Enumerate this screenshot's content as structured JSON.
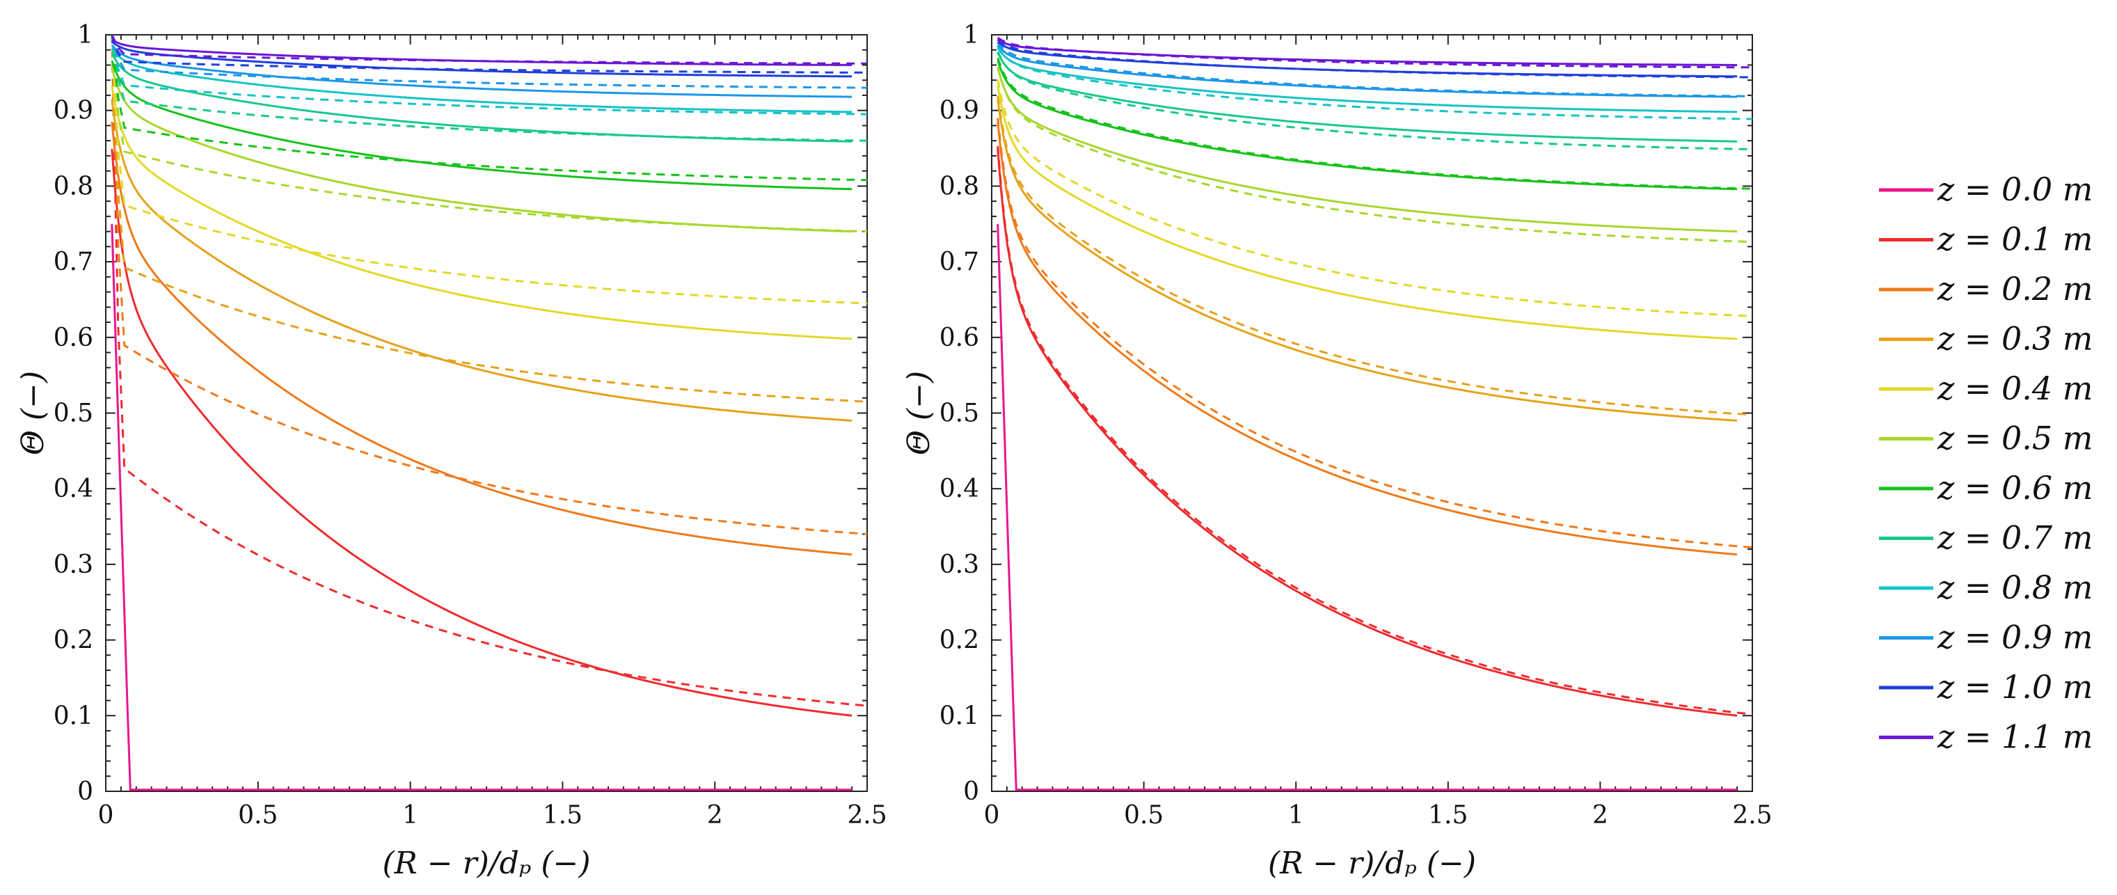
{
  "chart_data": {
    "type": "line",
    "xlabel": "(R − r)/dₚ   (−)",
    "ylabel": "Θ   (−)",
    "xlim": [
      0,
      2.5
    ],
    "ylim": [
      0,
      1
    ],
    "xticks": [
      "0",
      "0.5",
      "1",
      "1.5",
      "2",
      "2.5"
    ],
    "yticks": [
      "0",
      "0.1",
      "0.2",
      "0.3",
      "0.4",
      "0.5",
      "0.6",
      "0.7",
      "0.8",
      "0.9",
      "1"
    ],
    "legend": [
      {
        "label": "z = 0.0 m",
        "color": "#e8168c"
      },
      {
        "label": "z = 0.1 m",
        "color": "#ef2b2e"
      },
      {
        "label": "z = 0.2 m",
        "color": "#ef7a1a"
      },
      {
        "label": "z = 0.3 m",
        "color": "#e5a21a"
      },
      {
        "label": "z = 0.4 m",
        "color": "#e2d928"
      },
      {
        "label": "z = 0.5 m",
        "color": "#a6d82c"
      },
      {
        "label": "z = 0.6 m",
        "color": "#16c21a"
      },
      {
        "label": "z = 0.7 m",
        "color": "#19c98a"
      },
      {
        "label": "z = 0.8 m",
        "color": "#17c3c5"
      },
      {
        "label": "z = 0.9 m",
        "color": "#1c97e8"
      },
      {
        "label": "z = 1.0 m",
        "color": "#1f3fdb"
      },
      {
        "label": "z = 1.1 m",
        "color": "#6a17d6"
      }
    ],
    "panels": [
      {
        "name": "left",
        "solid": [
          0.0,
          0.1,
          0.313,
          0.49,
          0.598,
          0.74,
          0.796,
          0.859,
          0.898,
          0.918,
          0.945,
          0.96
        ],
        "dashed_start": [
          0.0,
          0.44,
          0.6,
          0.7,
          0.78,
          0.85,
          0.88,
          0.915,
          0.935,
          0.955,
          0.965,
          0.975
        ],
        "dashed_end": [
          0.0,
          0.113,
          0.34,
          0.515,
          0.645,
          0.74,
          0.808,
          0.86,
          0.895,
          0.93,
          0.95,
          0.962
        ]
      },
      {
        "name": "right",
        "solid": [
          0.0,
          0.1,
          0.313,
          0.49,
          0.598,
          0.74,
          0.796,
          0.859,
          0.898,
          0.918,
          0.945,
          0.96
        ],
        "dashed_end": [
          0.0,
          0.1,
          0.32,
          0.495,
          0.625,
          0.723,
          0.793,
          0.845,
          0.885,
          0.915,
          0.94,
          0.953
        ]
      }
    ]
  }
}
